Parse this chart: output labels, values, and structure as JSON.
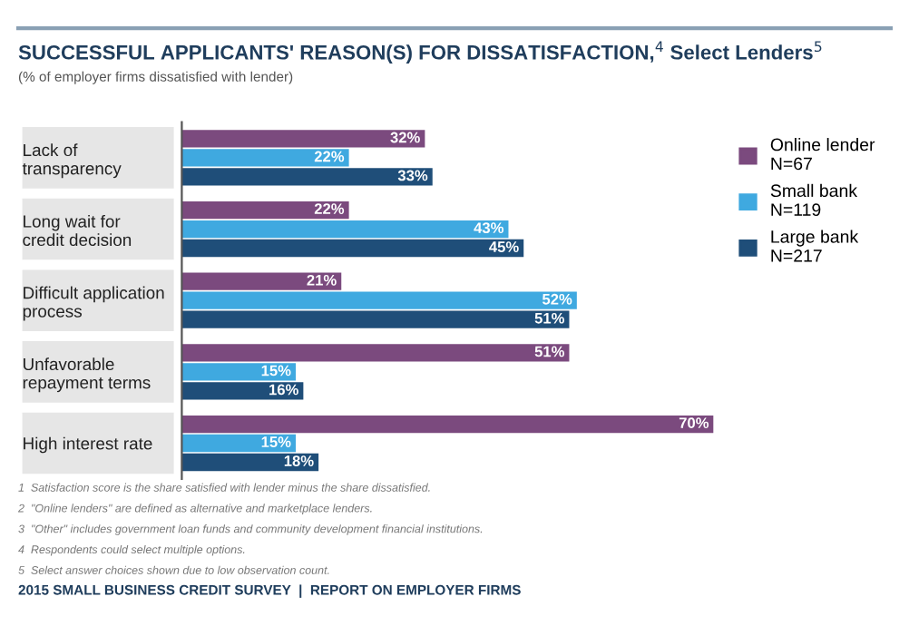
{
  "chart_data": {
    "type": "bar",
    "orientation": "horizontal",
    "title": "SUCCESSFUL APPLICANTS' REASON(S) FOR DISSATISFACTION,$^{4}$ Select Lenders$^{5}$",
    "subtitle": "(% of employer firms dissatisfied with lender)",
    "categories": [
      "Lack of\ntransparency",
      "Long wait for\ncredit decision",
      "Difficult application\nprocess",
      "Unfavorable\nrepayment terms",
      "High interest rate"
    ],
    "series": [
      {
        "name": "Online lender\nN=67",
        "color": "#7b4a7e",
        "values": [
          32,
          22,
          21,
          51,
          70
        ],
        "value_labels": [
          "32%",
          "22%",
          "21%",
          "51%",
          "70%"
        ]
      },
      {
        "name": "Small bank\nN=119",
        "color": "#3fa9e0",
        "values": [
          22,
          43,
          52,
          15,
          15
        ],
        "value_labels": [
          "22%",
          "43%",
          "52%",
          "15%",
          "15%"
        ]
      },
      {
        "name": "Large bank\nN=217",
        "color": "#1f4e79",
        "values": [
          33,
          45,
          51,
          16,
          18
        ],
        "value_labels": [
          "33%",
          "45%",
          "51%",
          "16%",
          "18%"
        ]
      }
    ],
    "legend": "right",
    "annotations": [
      "1  Satisfaction score is the share satisfied with lender minus the share dissatisfied.",
      "2  \"Online lenders\" are defined as alternative and marketplace lenders.",
      "3  \"Other\" includes government loan funds and community development financial institutions.",
      "4  Respondents could select multiple options.",
      "5  Select answer choices shown due to low observation count.",
      "2015 SMALL BUSINESS CREDIT SURVEY  |  REPORT ON EMPLOYER FIRMS"
    ]
  }
}
